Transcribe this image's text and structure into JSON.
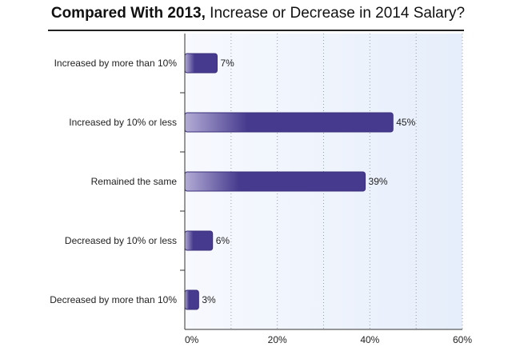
{
  "title": {
    "bold": "Compared With 2013,",
    "rest": "Increase or Decrease in 2014 Salary?"
  },
  "colors": {
    "bar_light": "#b3add6",
    "bar_dark": "#463a8e",
    "bar_border": "#3a2f7a",
    "plot_bg_left": "#f7f9fe",
    "plot_bg_right": "#e6eefb",
    "grid": "#9aa0aa",
    "axis": "#333333"
  },
  "chart_data": {
    "type": "bar",
    "orientation": "horizontal",
    "title": "Compared With 2013, Increase or Decrease in 2014 Salary?",
    "categories": [
      "Increased by more than 10%",
      "Increased by 10% or less",
      "Remained the same",
      "Decreased by 10% or less",
      "Decreased by more than 10%"
    ],
    "values": [
      7,
      45,
      39,
      6,
      3
    ],
    "value_labels": [
      "7%",
      "45%",
      "39%",
      "6%",
      "3%"
    ],
    "xlim": [
      0,
      60
    ],
    "xticks": [
      0,
      20,
      40,
      60
    ],
    "xtick_labels": [
      "0%",
      "20%",
      "40%",
      "60%"
    ],
    "grid_step": 10,
    "grid": "vertical dotted",
    "legend": "none"
  }
}
